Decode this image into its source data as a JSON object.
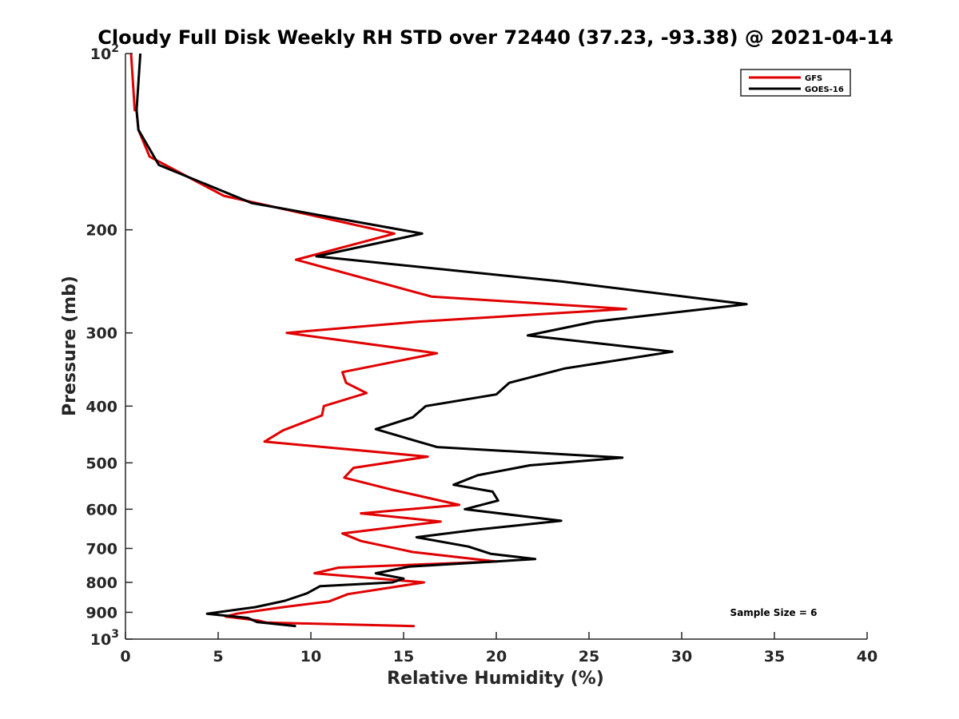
{
  "chart_data": {
    "type": "line",
    "title": "Cloudy Full Disk Weekly RH STD over 72440 (37.23, -93.38) @ 2021-04-14",
    "xlabel": "Relative Humidity (%)",
    "ylabel": "Pressure (mb)",
    "xlim": [
      0,
      40
    ],
    "ylim": [
      100,
      1000
    ],
    "y_scale": "log",
    "y_reversed": true,
    "x_ticks": [
      0,
      5,
      10,
      15,
      20,
      25,
      30,
      35,
      40
    ],
    "y_ticks": [
      {
        "value": 100,
        "label": "10",
        "sup": "2"
      },
      {
        "value": 200,
        "label": "200"
      },
      {
        "value": 300,
        "label": "300"
      },
      {
        "value": 400,
        "label": "400"
      },
      {
        "value": 500,
        "label": "500"
      },
      {
        "value": 600,
        "label": "600"
      },
      {
        "value": 700,
        "label": "700"
      },
      {
        "value": 800,
        "label": "800"
      },
      {
        "value": 900,
        "label": "900"
      },
      {
        "value": 1000,
        "label": "10",
        "sup": "3"
      }
    ],
    "legend_position": "top-right",
    "grid": false,
    "annotation": "Sample Size = 6",
    "series": [
      {
        "name": "GFS",
        "color": "#e00000",
        "points": [
          [
            0.3,
            100
          ],
          [
            0.5,
            125
          ],
          [
            0.6,
            125
          ],
          [
            0.7,
            135
          ],
          [
            1.3,
            150
          ],
          [
            5.3,
            175
          ],
          [
            14.5,
            203
          ],
          [
            9.2,
            225
          ],
          [
            16.5,
            260
          ],
          [
            27.0,
            273
          ],
          [
            15.8,
            287
          ],
          [
            8.7,
            300
          ],
          [
            16.8,
            325
          ],
          [
            11.7,
            350
          ],
          [
            11.9,
            365
          ],
          [
            13.0,
            380
          ],
          [
            10.7,
            400
          ],
          [
            10.6,
            415
          ],
          [
            8.5,
            440
          ],
          [
            7.5,
            460
          ],
          [
            16.3,
            488
          ],
          [
            12.3,
            510
          ],
          [
            11.8,
            530
          ],
          [
            14.3,
            555
          ],
          [
            18.0,
            590
          ],
          [
            12.7,
            610
          ],
          [
            17.0,
            630
          ],
          [
            11.7,
            660
          ],
          [
            12.7,
            680
          ],
          [
            15.5,
            710
          ],
          [
            20.0,
            737
          ],
          [
            11.5,
            755
          ],
          [
            10.2,
            772
          ],
          [
            16.1,
            800
          ],
          [
            12.0,
            838
          ],
          [
            11.0,
            862
          ],
          [
            8.5,
            882
          ],
          [
            6.0,
            905
          ],
          [
            5.4,
            915
          ],
          [
            7.2,
            930
          ],
          [
            7.6,
            937
          ],
          [
            15.6,
            950
          ]
        ]
      },
      {
        "name": "GOES-16",
        "color": "#000000",
        "points": [
          [
            0.8,
            100
          ],
          [
            0.6,
            125
          ],
          [
            0.7,
            135
          ],
          [
            1.8,
            155
          ],
          [
            6.8,
            180
          ],
          [
            16.0,
            203
          ],
          [
            10.3,
            222
          ],
          [
            23.5,
            245
          ],
          [
            33.5,
            268
          ],
          [
            25.3,
            287
          ],
          [
            21.7,
            303
          ],
          [
            29.5,
            323
          ],
          [
            23.7,
            345
          ],
          [
            20.7,
            365
          ],
          [
            20.0,
            382
          ],
          [
            16.2,
            400
          ],
          [
            15.5,
            418
          ],
          [
            13.5,
            438
          ],
          [
            16.8,
            470
          ],
          [
            26.8,
            490
          ],
          [
            21.8,
            505
          ],
          [
            19.0,
            525
          ],
          [
            17.7,
            545
          ],
          [
            19.8,
            560
          ],
          [
            20.1,
            580
          ],
          [
            18.3,
            600
          ],
          [
            23.5,
            628
          ],
          [
            19.0,
            650
          ],
          [
            15.7,
            670
          ],
          [
            18.5,
            695
          ],
          [
            19.7,
            715
          ],
          [
            22.1,
            730
          ],
          [
            15.3,
            752
          ],
          [
            13.5,
            772
          ],
          [
            15.0,
            788
          ],
          [
            14.4,
            800
          ],
          [
            10.5,
            812
          ],
          [
            9.8,
            835
          ],
          [
            8.6,
            860
          ],
          [
            7.0,
            882
          ],
          [
            4.4,
            905
          ],
          [
            6.6,
            920
          ],
          [
            7.1,
            935
          ],
          [
            9.2,
            950
          ]
        ]
      }
    ]
  }
}
